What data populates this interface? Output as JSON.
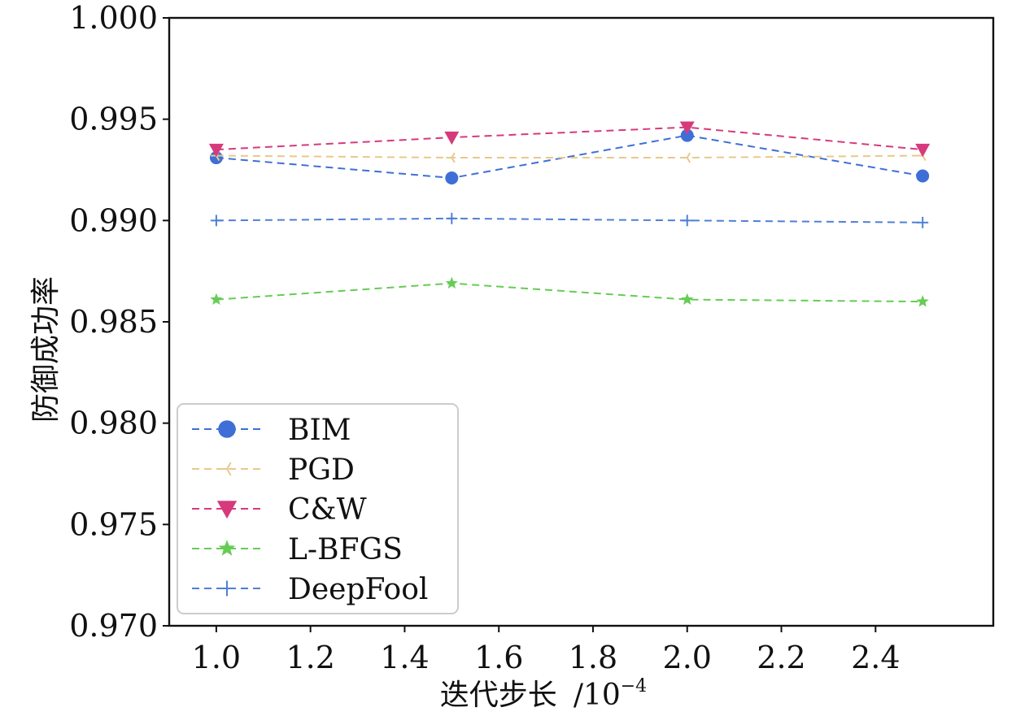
{
  "chart_data": {
    "type": "line",
    "xlabel": "迭代步长",
    "xunit_base": "/10",
    "xunit_exp": "−4",
    "ylabel": "防御成功率",
    "x": [
      1.0,
      1.5,
      2.0,
      2.5
    ],
    "xlim": [
      0.9,
      2.65
    ],
    "ylim": [
      0.97,
      1.0
    ],
    "xticks": [
      "1.0",
      "1.2",
      "1.4",
      "1.6",
      "1.8",
      "2.0",
      "2.2",
      "2.4"
    ],
    "yticks": [
      "0.970",
      "0.975",
      "0.980",
      "0.985",
      "0.990",
      "0.995",
      "1.000"
    ],
    "grid": false,
    "legend_position": "lower-left",
    "series": [
      {
        "name": "BIM",
        "values": [
          0.9931,
          0.9921,
          0.9942,
          0.9922
        ],
        "color": "#3f6fd6",
        "marker": "circle"
      },
      {
        "name": "PGD",
        "values": [
          0.9932,
          0.9931,
          0.9931,
          0.9932
        ],
        "color": "#e8c98a",
        "marker": "tri-left"
      },
      {
        "name": "C&W",
        "values": [
          0.9935,
          0.9941,
          0.9946,
          0.9935
        ],
        "color": "#d63a7c",
        "marker": "triangle-down"
      },
      {
        "name": "L-BFGS",
        "values": [
          0.9861,
          0.9869,
          0.9861,
          0.986
        ],
        "color": "#66cc55",
        "marker": "star"
      },
      {
        "name": "DeepFool",
        "values": [
          0.99,
          0.9901,
          0.99,
          0.9899
        ],
        "color": "#4f7fd6",
        "marker": "plus"
      }
    ]
  }
}
